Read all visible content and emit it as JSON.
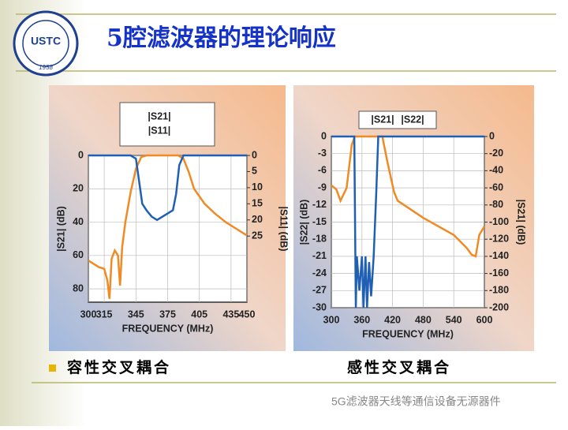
{
  "title": "5腔滤波器的理论响应",
  "logo": {
    "name": "USTC",
    "year": "1958"
  },
  "captions": [
    "容性交叉耦合",
    "感性交叉耦合"
  ],
  "watermark": "5G滤波器天线等通信设备无源器件",
  "chart_data": [
    {
      "type": "line",
      "x_label": "FREQUENCY (MHz)",
      "y_label": "|S21| (dB)",
      "y2_label": "|S11| (dB)",
      "xlim": [
        300,
        450
      ],
      "xticks": [
        300,
        315,
        345,
        375,
        405,
        435,
        450
      ],
      "ylim": [
        88,
        0
      ],
      "yticks": [
        0,
        20,
        40,
        60,
        80
      ],
      "y2lim": [
        45.5,
        0
      ],
      "y2ticks": [
        0,
        5,
        10,
        15,
        20,
        25
      ],
      "grid": true,
      "series": [
        {
          "name": "|S21|",
          "color": "#f08a24",
          "x": [
            300,
            305,
            310,
            315,
            318,
            320,
            322,
            325,
            328,
            330,
            332,
            335,
            340,
            345,
            350,
            355,
            375,
            385,
            390,
            395,
            400,
            410,
            420,
            430,
            440,
            450
          ],
          "values": [
            63,
            65,
            67,
            68,
            75,
            86,
            62,
            57,
            60,
            78,
            55,
            40,
            22,
            8,
            1,
            0,
            0,
            0,
            2,
            10,
            20,
            29,
            35,
            40,
            44,
            48
          ]
        },
        {
          "name": "|S11|",
          "color": "#1f5fb4",
          "axis": "y2",
          "x": [
            300,
            340,
            345,
            348,
            351,
            355,
            360,
            365,
            370,
            375,
            380,
            383,
            386,
            390,
            450
          ],
          "values": [
            0,
            0,
            1,
            8,
            15,
            17,
            19,
            20,
            19,
            18,
            17,
            12,
            3,
            0,
            0
          ]
        }
      ]
    },
    {
      "type": "line",
      "x_label": "FREQUENCY (MHz)",
      "y_label": "|S22| (dB)",
      "y2_label": "|S21| (dB)",
      "xlim": [
        300,
        600
      ],
      "xticks": [
        300,
        360,
        420,
        480,
        540,
        600
      ],
      "ylim": [
        -30,
        0
      ],
      "yticks": [
        0,
        -3,
        -6,
        -9,
        -12,
        -15,
        -18,
        -21,
        -24,
        -27,
        -30
      ],
      "y2lim": [
        -200,
        0
      ],
      "y2ticks": [
        0,
        -20,
        -40,
        -60,
        -80,
        -100,
        -120,
        -140,
        -160,
        -180,
        -200
      ],
      "grid": true,
      "series": [
        {
          "name": "|S21|",
          "color": "#f08a24",
          "axis": "y2",
          "x": [
            300,
            310,
            318,
            330,
            340,
            346,
            350,
            400,
            410,
            423,
            430,
            480,
            540,
            565,
            575,
            583,
            590,
            600
          ],
          "values": [
            -57,
            -62,
            -75,
            -60,
            -10,
            0,
            0,
            0,
            -30,
            -65,
            -75,
            -95,
            -115,
            -130,
            -138,
            -140,
            -115,
            -105
          ]
        },
        {
          "name": "|S22|",
          "color": "#1f5fb4",
          "x": [
            300,
            345,
            348,
            350,
            355,
            360,
            363,
            367,
            370,
            374,
            378,
            383,
            388,
            392,
            600
          ],
          "values": [
            0,
            0,
            -30,
            -21,
            -27,
            -21,
            -30,
            -21,
            -30,
            -22,
            -28,
            -21,
            -10,
            0,
            0
          ]
        }
      ]
    }
  ]
}
